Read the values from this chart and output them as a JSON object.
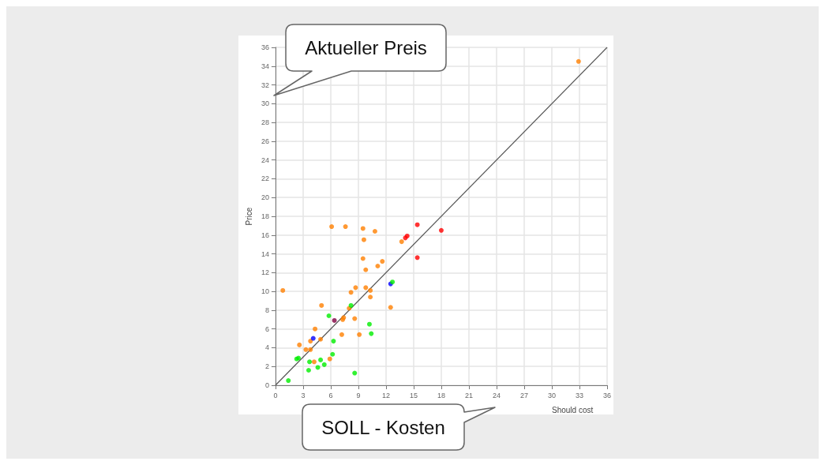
{
  "chart_data": {
    "type": "scatter",
    "xlabel": "Should cost",
    "ylabel": "Price",
    "annotations": [
      "Aktueller Preis",
      "SOLL - Kosten"
    ],
    "xlim": [
      0,
      36
    ],
    "xticks": [
      0,
      3,
      6,
      9,
      12,
      15,
      18,
      21,
      24,
      27,
      30,
      33,
      36
    ],
    "ylim": [
      0,
      36
    ],
    "yticks": [
      0,
      2,
      4,
      6,
      8,
      10,
      12,
      14,
      16,
      18,
      20,
      22,
      24,
      26,
      28,
      30,
      32,
      34,
      36
    ],
    "grid": true,
    "marker": "circle",
    "series": [
      {
        "type": "line",
        "color": "#555555",
        "marker": "none",
        "x": [
          0,
          36
        ],
        "values": [
          0,
          36
        ]
      },
      {
        "color": "#ff8000",
        "x": [
          6.1,
          7.6,
          9.5,
          10.8,
          9.6,
          13.7,
          9.5,
          11.6,
          11.1,
          9.8,
          0.8,
          8.7,
          9.8,
          8.2,
          10.3,
          10.3,
          5.0,
          8.0,
          7.4,
          7.3,
          8.6,
          12.5,
          4.3,
          4.9,
          3.8,
          2.6,
          3.3,
          3.8,
          4.2,
          5.9,
          7.2,
          9.1,
          32.9
        ],
        "values": [
          16.9,
          16.9,
          16.7,
          16.4,
          15.5,
          15.3,
          13.5,
          13.2,
          12.7,
          12.3,
          10.1,
          10.4,
          10.4,
          9.9,
          10.1,
          9.4,
          8.5,
          8.2,
          7.2,
          7.0,
          7.1,
          8.3,
          6.0,
          4.9,
          4.7,
          4.3,
          3.8,
          3.8,
          2.5,
          2.8,
          5.4,
          5.4,
          34.5
        ]
      },
      {
        "color": "#ff0000",
        "x": [
          15.4,
          18.0,
          14.1,
          14.3,
          15.4
        ],
        "values": [
          17.1,
          16.5,
          15.7,
          15.9,
          13.6
        ]
      },
      {
        "color": "#0000ff",
        "x": [
          12.5,
          4.1
        ],
        "values": [
          10.8,
          5.0
        ]
      },
      {
        "color": "#800040",
        "x": [
          6.4
        ],
        "values": [
          6.9
        ]
      },
      {
        "color": "#00ee00",
        "x": [
          12.7,
          8.2,
          5.8,
          10.2,
          10.4,
          6.3,
          2.3,
          2.5,
          3.7,
          4.9,
          5.3,
          4.6,
          3.6,
          6.2,
          8.6,
          1.4
        ],
        "values": [
          11.0,
          8.5,
          7.4,
          6.5,
          5.5,
          4.7,
          2.8,
          2.9,
          2.5,
          2.7,
          2.2,
          1.9,
          1.6,
          3.3,
          1.3,
          0.5
        ]
      }
    ]
  }
}
